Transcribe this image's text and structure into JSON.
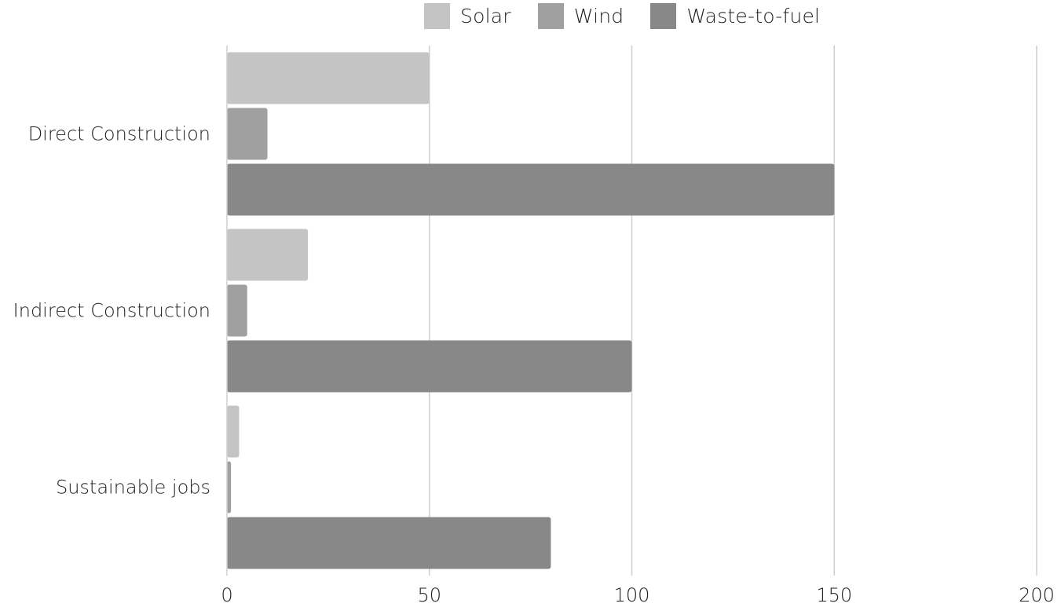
{
  "chart_data": {
    "type": "bar",
    "orientation": "horizontal",
    "title": "",
    "xlabel": "",
    "ylabel": "",
    "categories": [
      "Direct Construction",
      "Indirect Construction",
      "Sustainable jobs"
    ],
    "series": [
      {
        "name": "Solar",
        "values": [
          50,
          20,
          3
        ],
        "color": "#c4c4c4"
      },
      {
        "name": "Wind",
        "values": [
          10,
          5,
          1
        ],
        "color": "#a0a0a0"
      },
      {
        "name": "Waste-to-fuel",
        "values": [
          150,
          100,
          80
        ],
        "color": "#888888"
      }
    ],
    "xlim": [
      0,
      200
    ],
    "xticks": [
      "0",
      "50",
      "100",
      "150",
      "200"
    ],
    "grid": "vertical",
    "legend_position": "top"
  }
}
